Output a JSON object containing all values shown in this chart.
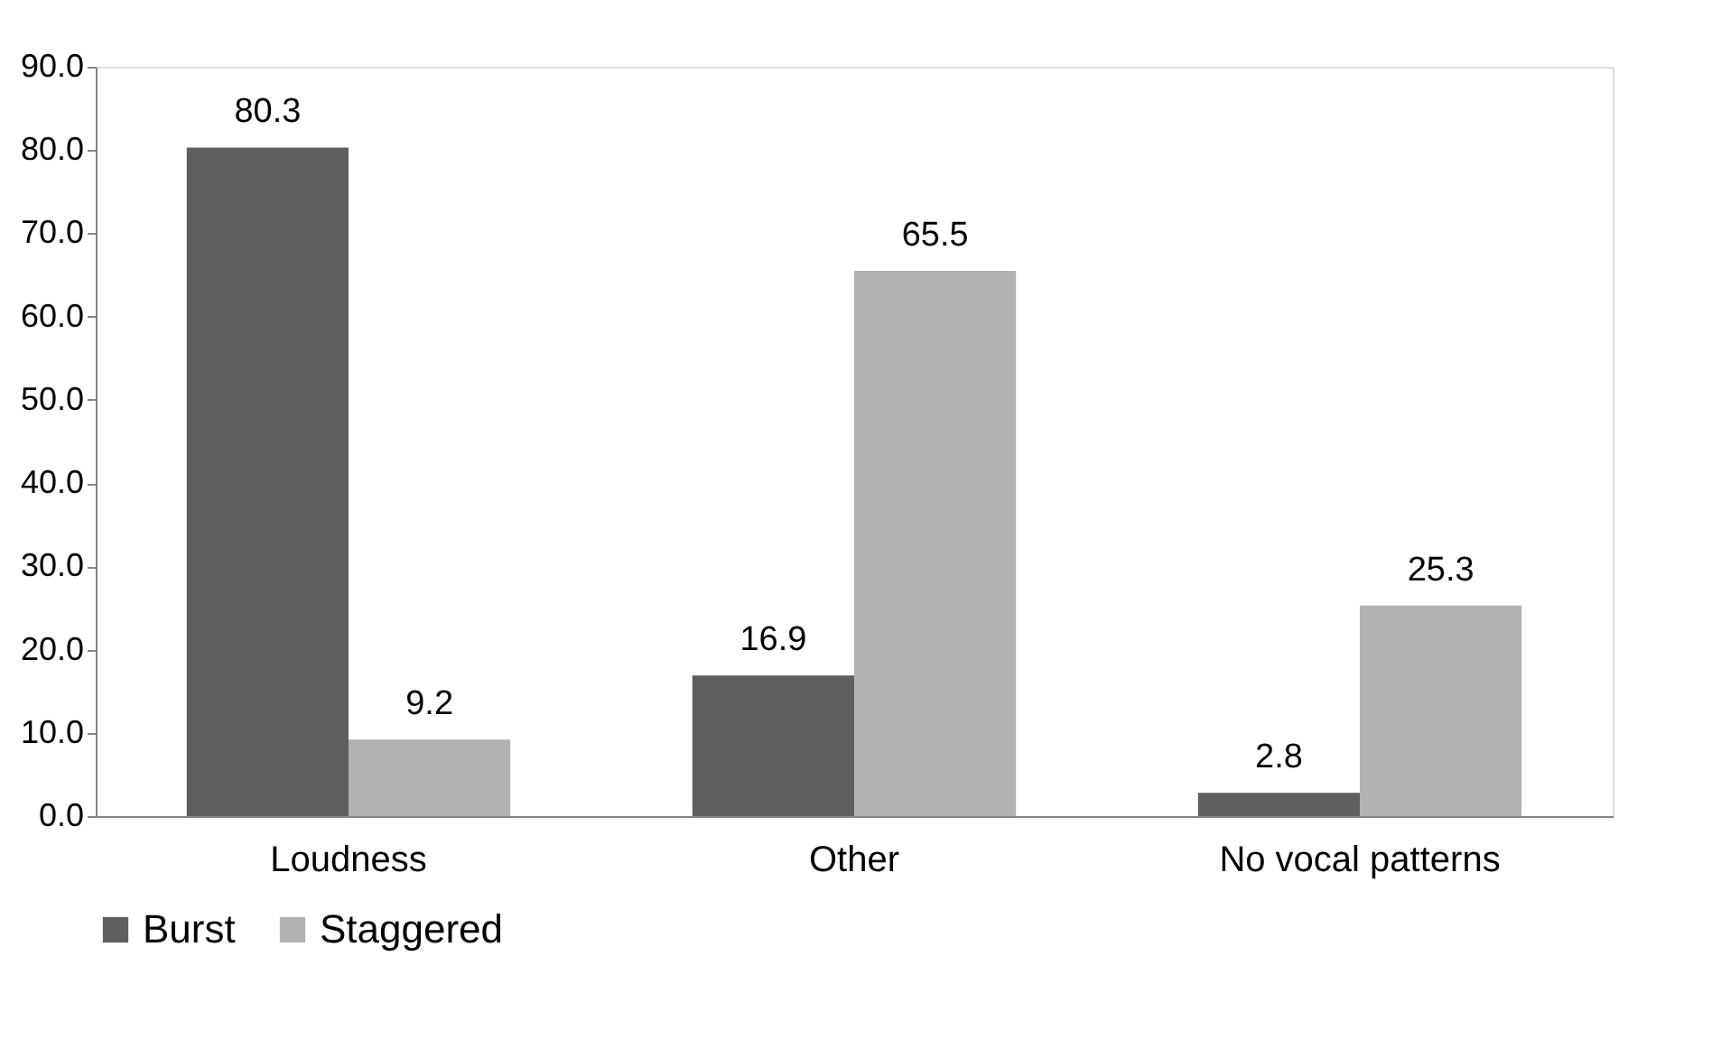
{
  "chart_data": {
    "type": "bar",
    "categories": [
      "Loudness",
      "Other",
      "No vocal patterns"
    ],
    "series": [
      {
        "name": "Burst",
        "color": "#5f5f5f",
        "values": [
          80.3,
          16.9,
          2.8
        ]
      },
      {
        "name": "Staggered",
        "color": "#b2b2b2",
        "values": [
          9.2,
          65.5,
          25.3
        ]
      }
    ],
    "ylim": [
      0,
      90
    ],
    "yticks": [
      {
        "value": 0,
        "label": "0.0"
      },
      {
        "value": 10,
        "label": "10.0"
      },
      {
        "value": 20,
        "label": "20.0"
      },
      {
        "value": 30,
        "label": "30.0"
      },
      {
        "value": 40,
        "label": "40.0"
      },
      {
        "value": 50,
        "label": "50.0"
      },
      {
        "value": 60,
        "label": "60.0"
      },
      {
        "value": 70,
        "label": "70.0"
      },
      {
        "value": 80,
        "label": "80.0"
      },
      {
        "value": 90,
        "label": "90.0"
      }
    ],
    "data_labels": true,
    "grid": false,
    "legend": "bottom"
  }
}
